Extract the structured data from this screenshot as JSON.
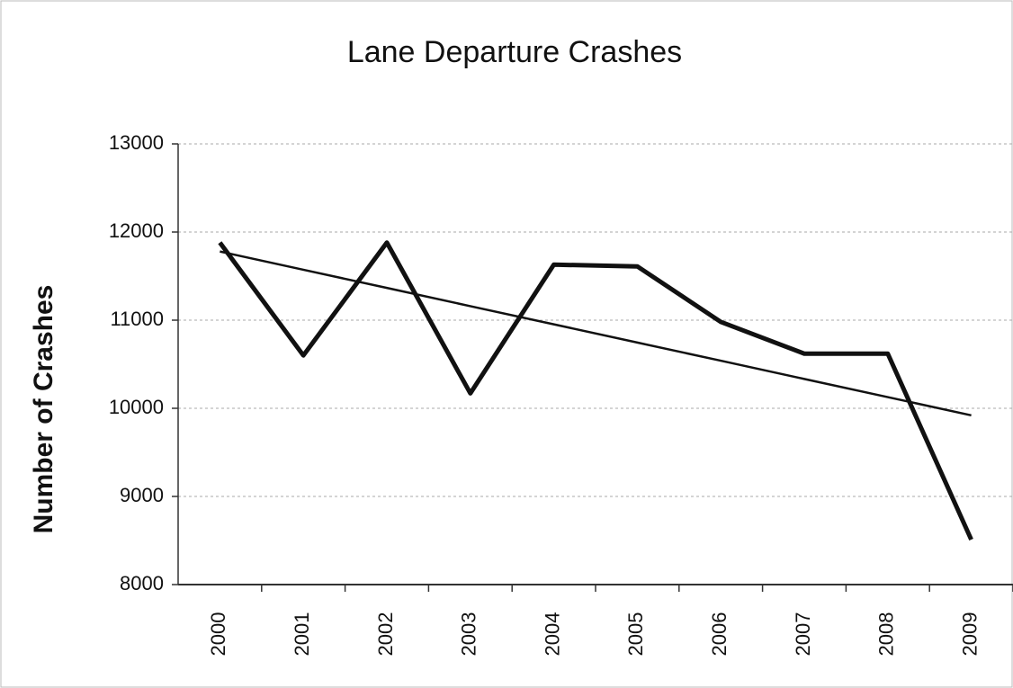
{
  "chart_data": {
    "type": "line",
    "title": "Lane Departure Crashes",
    "y_label": "Number of Crashes",
    "categories": [
      "2000",
      "2001",
      "2002",
      "2003",
      "2004",
      "2005",
      "2006",
      "2007",
      "2008",
      "2009"
    ],
    "series": [
      {
        "color": "#111111",
        "values": [
          11880,
          10600,
          11880,
          10170,
          11630,
          11610,
          10980,
          10620,
          10620,
          8510
        ]
      },
      {
        "color": "#111111",
        "trendline": true,
        "values": [
          11779,
          11572,
          11366,
          11159,
          10953,
          10746,
          10540,
          10333,
          10127,
          9920
        ]
      }
    ],
    "ylim": [
      8000,
      13000
    ],
    "yticks": [
      8000,
      9000,
      10000,
      11000,
      12000,
      13000
    ],
    "grid": true
  }
}
